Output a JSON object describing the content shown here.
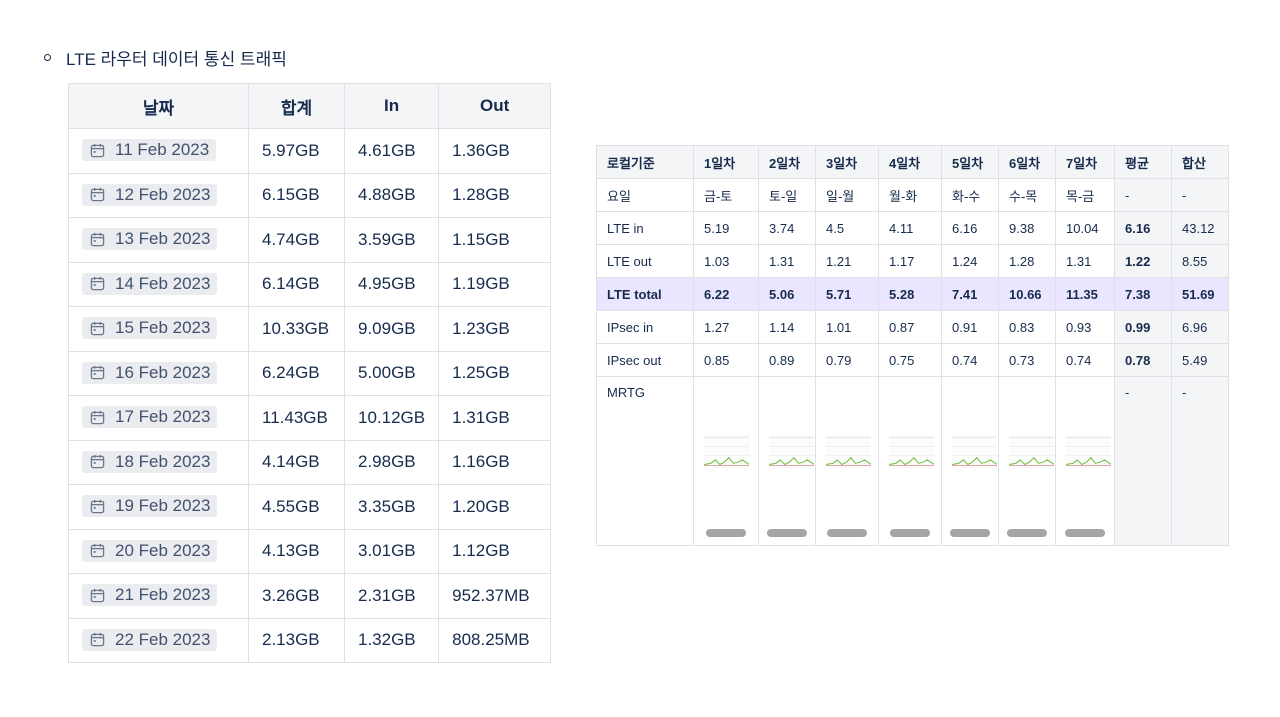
{
  "heading": "LTE 라우터 데이터 통신 트래픽",
  "traffic_table": {
    "headers": [
      "날짜",
      "합계",
      "In",
      "Out"
    ],
    "rows": [
      {
        "date": "11 Feb 2023",
        "sum": "5.97GB",
        "in": "4.61GB",
        "out": "1.36GB"
      },
      {
        "date": "12 Feb 2023",
        "sum": "6.15GB",
        "in": "4.88GB",
        "out": "1.28GB"
      },
      {
        "date": "13 Feb 2023",
        "sum": "4.74GB",
        "in": "3.59GB",
        "out": "1.15GB"
      },
      {
        "date": "14 Feb 2023",
        "sum": "6.14GB",
        "in": "4.95GB",
        "out": "1.19GB"
      },
      {
        "date": "15 Feb 2023",
        "sum": "10.33GB",
        "in": "9.09GB",
        "out": "1.23GB"
      },
      {
        "date": "16 Feb 2023",
        "sum": "6.24GB",
        "in": "5.00GB",
        "out": "1.25GB"
      },
      {
        "date": "17 Feb 2023",
        "sum": "11.43GB",
        "in": "10.12GB",
        "out": "1.31GB"
      },
      {
        "date": "18 Feb 2023",
        "sum": "4.14GB",
        "in": "2.98GB",
        "out": "1.16GB"
      },
      {
        "date": "19 Feb 2023",
        "sum": "4.55GB",
        "in": "3.35GB",
        "out": "1.20GB"
      },
      {
        "date": "20 Feb 2023",
        "sum": "4.13GB",
        "in": "3.01GB",
        "out": "1.12GB"
      },
      {
        "date": "21 Feb 2023",
        "sum": "3.26GB",
        "in": "2.31GB",
        "out": "952.37MB"
      },
      {
        "date": "22 Feb 2023",
        "sum": "2.13GB",
        "in": "1.32GB",
        "out": "808.25MB"
      }
    ]
  },
  "stats_table": {
    "headers": [
      "로컬기준",
      "1일차",
      "2일차",
      "3일차",
      "4일차",
      "5일차",
      "6일차",
      "7일차",
      "평균",
      "합산"
    ],
    "rows": [
      {
        "label": "요일",
        "values": [
          "금-토",
          "토-일",
          "일-월",
          "월-화",
          "화-수",
          "수-목",
          "목-금"
        ],
        "avg": "-",
        "sum": "-",
        "highlight": false,
        "avg_bold": false
      },
      {
        "label": "LTE in",
        "values": [
          "5.19",
          "3.74",
          "4.5",
          "4.11",
          "6.16",
          "9.38",
          "10.04"
        ],
        "avg": "6.16",
        "sum": "43.12",
        "highlight": false,
        "avg_bold": true
      },
      {
        "label": "LTE out",
        "values": [
          "1.03",
          "1.31",
          "1.21",
          "1.17",
          "1.24",
          "1.28",
          "1.31"
        ],
        "avg": "1.22",
        "sum": "8.55",
        "highlight": false,
        "avg_bold": true
      },
      {
        "label": "LTE total",
        "values": [
          "6.22",
          "5.06",
          "5.71",
          "5.28",
          "7.41",
          "10.66",
          "11.35"
        ],
        "avg": "7.38",
        "sum": "51.69",
        "highlight": true,
        "avg_bold": false
      },
      {
        "label": "IPsec in",
        "values": [
          "1.27",
          "1.14",
          "1.01",
          "0.87",
          "0.91",
          "0.83",
          "0.93"
        ],
        "avg": "0.99",
        "sum": "6.96",
        "highlight": false,
        "avg_bold": true
      },
      {
        "label": "IPsec out",
        "values": [
          "0.85",
          "0.89",
          "0.79",
          "0.75",
          "0.74",
          "0.73",
          "0.74"
        ],
        "avg": "0.78",
        "sum": "5.49",
        "highlight": false,
        "avg_bold": true
      }
    ],
    "mrtg": {
      "label": "MRTG",
      "avg": "-",
      "sum": "-"
    }
  },
  "colors": {
    "highlight_row": "#eae6ff",
    "header_bg": "#f4f5f7",
    "border": "#dfe1e6",
    "text": "#172b4d"
  },
  "icons": {
    "date": "calendar-icon"
  }
}
